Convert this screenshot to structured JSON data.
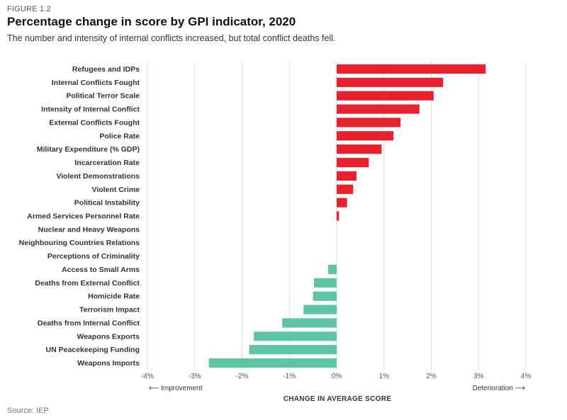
{
  "figure_label": "FIGURE 1.2",
  "title": "Percentage change in score by GPI indicator, 2020",
  "subtitle": "The number and intensity of internal conflicts increased, but total conflict deaths fell.",
  "source": "Source: IEP",
  "colors": {
    "deterioration": "#e8212e",
    "improvement": "#5ec4a6",
    "grid": "#d9d9d9"
  },
  "chart_data": {
    "type": "bar",
    "orientation": "horizontal",
    "categories": [
      "Refugees and IDPs",
      "Internal Conflicts Fought",
      "Political Terror Scale",
      "Intensity of Internal Conflict",
      "External Conflicts Fought",
      "Police Rate",
      "Military Expenditure (% GDP)",
      "Incarceration Rate",
      "Violent Demonstrations",
      "Violent Crime",
      "Political Instability",
      "Armed Services Personnel Rate",
      "Nuclear and Heavy Weapons",
      "Neighbouring Countries Relations",
      "Perceptions of Criminality",
      "Access to Small Arms",
      "Deaths from External Conflict",
      "Homicide Rate",
      "Terrorism Impact",
      "Deaths from Internal Conflict",
      "Weapons Exports",
      "UN Peacekeeping Funding",
      "Weapons Imports"
    ],
    "values": [
      3.15,
      2.25,
      2.05,
      1.75,
      1.35,
      1.2,
      0.95,
      0.68,
      0.42,
      0.35,
      0.22,
      0.05,
      0.0,
      0.0,
      0.0,
      -0.18,
      -0.48,
      -0.5,
      -0.7,
      -1.15,
      -1.75,
      -1.85,
      -2.7
    ],
    "xlim": [
      -4,
      4
    ],
    "ticks": [
      "-4%",
      "-3%",
      "-2%",
      "-1%",
      "0%",
      "1%",
      "2%",
      "3%",
      "4%"
    ],
    "xlabel": "CHANGE IN AVERAGE SCORE",
    "left_direction_label": "Improvement",
    "right_direction_label": "Deterioration",
    "grid": true
  }
}
